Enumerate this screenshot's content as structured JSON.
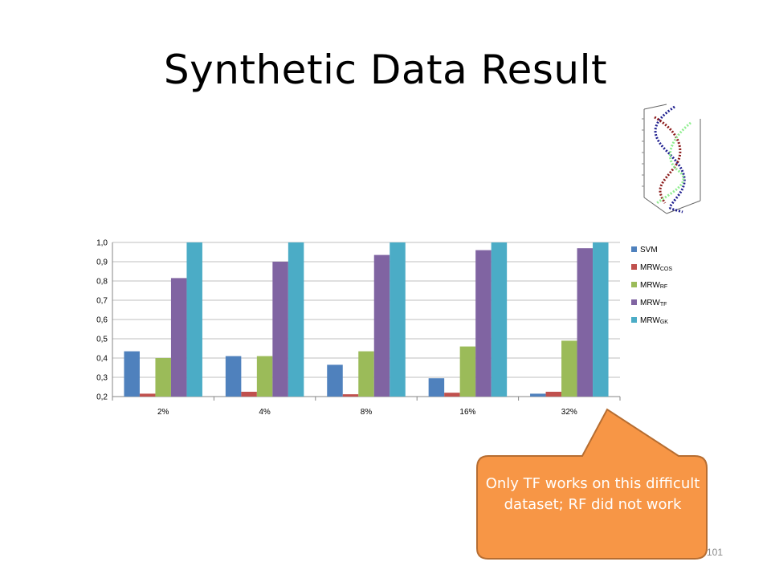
{
  "slide": {
    "title": "Synthetic Data Result",
    "page_number": "101",
    "callout": {
      "text": "Only TF works on this difficult dataset; RF did not work",
      "fill": "#F79646",
      "stroke": "#B66D31"
    }
  },
  "thumbnail": {
    "description_icon": "helix-scatter-icon"
  },
  "chart_data": {
    "type": "bar",
    "title": "",
    "xlabel": "",
    "ylabel": "",
    "categories": [
      "2%",
      "4%",
      "8%",
      "16%",
      "32%"
    ],
    "ylim": [
      0.2,
      1.0
    ],
    "yticks": [
      "0,2",
      "0,3",
      "0,4",
      "0,5",
      "0,6",
      "0,7",
      "0,8",
      "0,9",
      "1,0"
    ],
    "grid": true,
    "legend_position": "right",
    "series": [
      {
        "name": "SVM",
        "color": "#4F81BD",
        "values": [
          0.435,
          0.41,
          0.365,
          0.295,
          0.215
        ]
      },
      {
        "name": "MRW",
        "subscript": "COS",
        "color": "#C0504D",
        "values": [
          0.215,
          0.225,
          0.212,
          0.22,
          0.225
        ]
      },
      {
        "name": "MRW",
        "subscript": "RF",
        "color": "#9BBB59",
        "values": [
          0.4,
          0.41,
          0.435,
          0.46,
          0.49
        ]
      },
      {
        "name": "MRW",
        "subscript": "TF",
        "color": "#8064A2",
        "values": [
          0.815,
          0.9,
          0.935,
          0.96,
          0.97
        ]
      },
      {
        "name": "MRW",
        "subscript": "GK",
        "color": "#4BACC6",
        "values": [
          1.0,
          1.0,
          1.0,
          1.0,
          1.0
        ]
      }
    ]
  }
}
